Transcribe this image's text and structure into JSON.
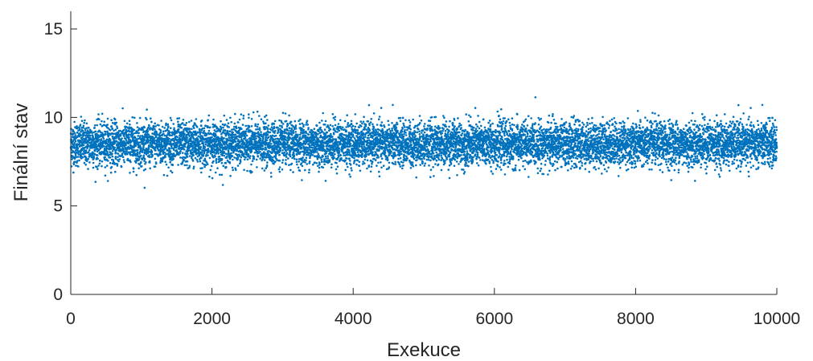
{
  "chart_data": {
    "type": "scatter",
    "title": "",
    "xlabel": "Exekuce",
    "ylabel": "Finální stav",
    "xlim": [
      0,
      10000
    ],
    "ylim": [
      0,
      16
    ],
    "xticks": [
      0,
      2000,
      4000,
      6000,
      8000,
      10000
    ],
    "yticks": [
      0,
      5,
      10,
      15
    ],
    "grid": false,
    "legend": "none",
    "marker_color": "#0072BD",
    "series": [
      {
        "n_points": 10000,
        "x_range": [
          1,
          10000
        ],
        "y_center": 8.5,
        "y_typical_range": [
          6.5,
          10.5
        ],
        "y_extremes": [
          5.7,
          11.3
        ]
      }
    ]
  }
}
